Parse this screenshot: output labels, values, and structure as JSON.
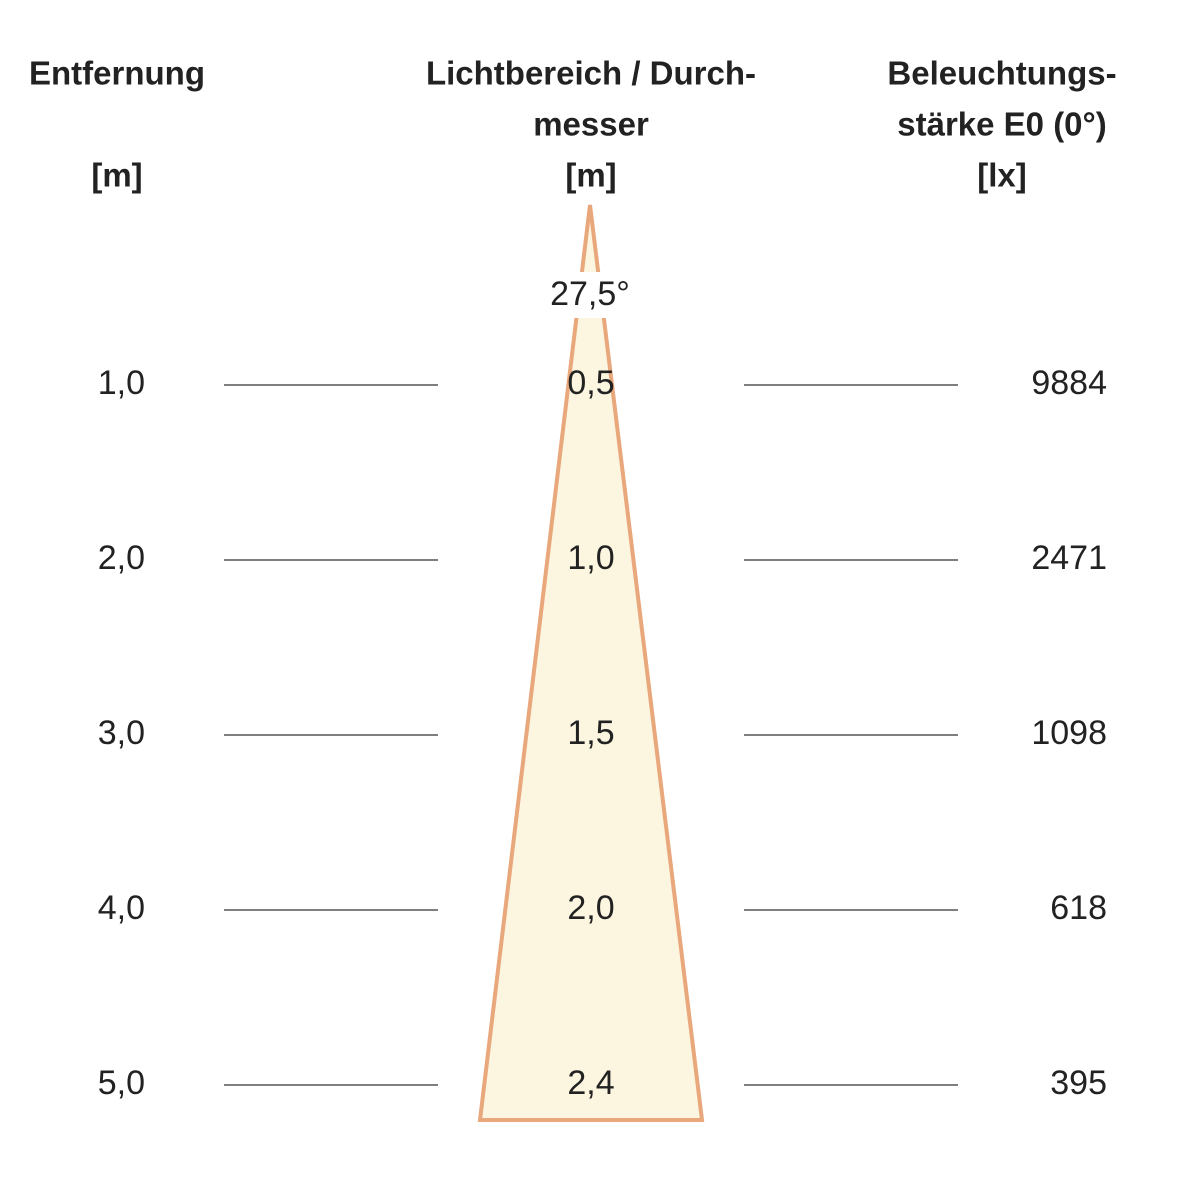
{
  "header": {
    "distance": {
      "title": "Entfernung",
      "unit": "[m]"
    },
    "diameter": {
      "title_line1": "Lichtbereich / Durch-",
      "title_line2": "messer",
      "unit": "[m]"
    },
    "illuminance": {
      "title_line1": "Beleuchtungs-",
      "title_line2": "stärke E0 (0°)",
      "unit": "[lx]"
    }
  },
  "beam_angle": "27,5°",
  "rows": [
    {
      "distance": "1,0",
      "diameter": "0,5",
      "illuminance": "9884"
    },
    {
      "distance": "2,0",
      "diameter": "1,0",
      "illuminance": "2471"
    },
    {
      "distance": "3,0",
      "diameter": "1,5",
      "illuminance": "1098"
    },
    {
      "distance": "4,0",
      "diameter": "2,0",
      "illuminance": "618"
    },
    {
      "distance": "5,0",
      "diameter": "2,4",
      "illuminance": "395"
    }
  ]
}
